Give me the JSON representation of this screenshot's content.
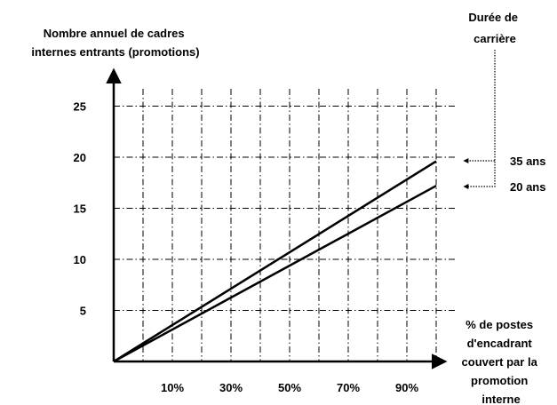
{
  "chart_data": {
    "type": "line",
    "ylabel": [
      "Nombre annuel de cadres",
      "internes entrants (promotions)"
    ],
    "xlabel": [
      "% de postes",
      "d'encadrant",
      "couvert par la",
      "promotion",
      "interne"
    ],
    "x_ticks": [
      "10%",
      "30%",
      "50%",
      "70%",
      "90%"
    ],
    "y_ticks": [
      5,
      10,
      15,
      20,
      25
    ],
    "x_tick_values": [
      10,
      30,
      50,
      70,
      90
    ],
    "xlim": [
      -10,
      100
    ],
    "ylim": [
      0,
      25
    ],
    "grid": true,
    "legend": {
      "title": [
        "Durée de",
        "carrière"
      ],
      "placement": "right"
    },
    "series": [
      {
        "name": "35 ans",
        "x": [
          -10,
          100
        ],
        "y": [
          0,
          19.6
        ]
      },
      {
        "name": "20 ans",
        "x": [
          -10,
          100
        ],
        "y": [
          0,
          17.2
        ]
      }
    ]
  }
}
